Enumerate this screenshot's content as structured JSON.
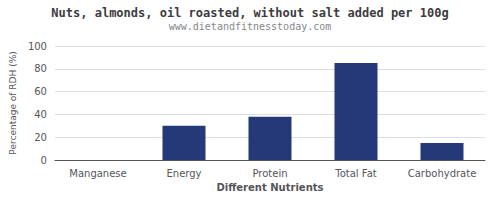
{
  "chart_data": {
    "type": "bar",
    "title": "Nuts, almonds, oil roasted, without salt added per 100g",
    "subtitle": "www.dietandfitnesstoday.com",
    "xlabel": "Different Nutrients",
    "ylabel": "Percentage of RDH (%)",
    "categories": [
      "Manganese",
      "Energy",
      "Protein",
      "Total Fat",
      "Carbohydrate"
    ],
    "values": [
      0,
      30,
      38,
      85,
      15
    ],
    "color": "#253878",
    "ylim": [
      0,
      100
    ],
    "yticks": [
      0,
      20,
      40,
      60,
      80,
      100
    ],
    "grid": true
  }
}
